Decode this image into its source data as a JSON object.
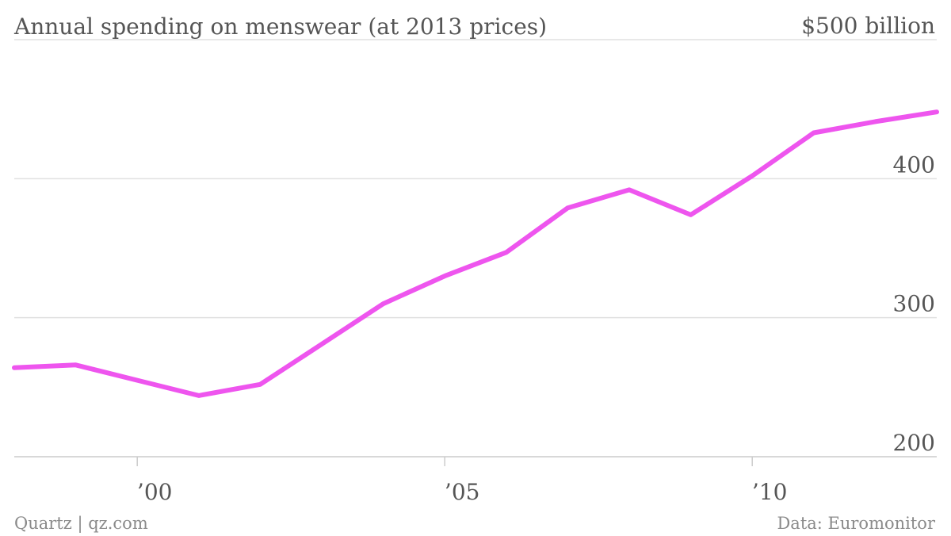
{
  "header": {
    "title": "Annual spending on menswear (at 2013 prices)"
  },
  "footer": {
    "credit": "Quartz | qz.com",
    "source": "Data: Euromonitor"
  },
  "colors": {
    "line": "#ee55ee",
    "text": "#555555",
    "grid": "#e0e0e0"
  },
  "chart_data": {
    "type": "line",
    "title": "Annual spending on menswear (at 2013 prices)",
    "ylabel": "",
    "xlabel": "",
    "ylim": [
      200,
      500
    ],
    "xlim": [
      1998,
      2013
    ],
    "grid": true,
    "y_ticks": [
      {
        "value": 500,
        "label": "$500 billion"
      },
      {
        "value": 400,
        "label": "400"
      },
      {
        "value": 300,
        "label": "300"
      },
      {
        "value": 200,
        "label": "200"
      }
    ],
    "x_ticks": [
      {
        "value": 2000,
        "label": "’00"
      },
      {
        "value": 2005,
        "label": "’05"
      },
      {
        "value": 2010,
        "label": "’10"
      }
    ],
    "series": [
      {
        "x": [
          1998,
          1999,
          2000,
          2001,
          2002,
          2003,
          2004,
          2005,
          2006,
          2007,
          2008,
          2009,
          2010,
          2011,
          2012,
          2013
        ],
        "values": [
          264,
          266,
          255,
          244,
          252,
          281,
          310,
          330,
          347,
          379,
          392,
          374,
          402,
          433,
          441,
          448
        ]
      }
    ]
  }
}
